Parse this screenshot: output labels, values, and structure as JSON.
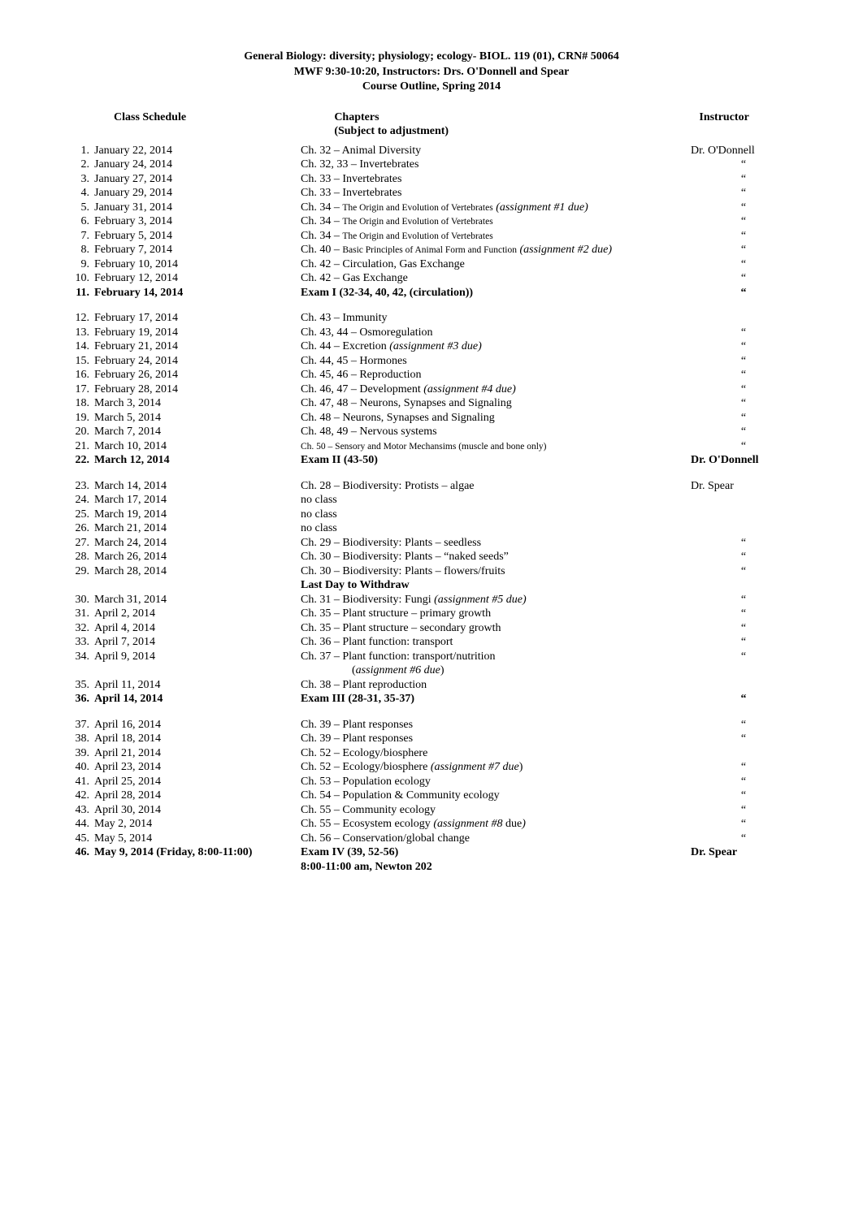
{
  "header": {
    "line1": "General Biology: diversity; physiology; ecology- BIOL. 119 (01), CRN# 50064",
    "line2": "MWF 9:30-10:20, Instructors: Drs. O'Donnell and Spear",
    "line3": "Course Outline, Spring 2014"
  },
  "colheaders": {
    "c1": "Class Schedule",
    "c2a": "Chapters",
    "c2b": "(Subject to adjustment)",
    "c3": "Instructor"
  },
  "blocks": [
    {
      "rows": [
        {
          "num": "1.",
          "date": "January 22, 2014",
          "chap": "Ch. 32 – Animal Diversity",
          "instr": "Dr. O'Donnell"
        },
        {
          "num": "2.",
          "date": "January 24, 2014",
          "chap": "Ch. 32, 33 – Invertebrates",
          "instr": "“"
        },
        {
          "num": "3.",
          "date": "January 27, 2014",
          "chap": "Ch. 33 – Invertebrates",
          "instr": "“"
        },
        {
          "num": "4.",
          "date": "January 29, 2014",
          "chap": "Ch. 33 – Invertebrates",
          "instr": "“"
        },
        {
          "num": "5.",
          "date": "January 31, 2014",
          "chap": "Ch. 34 – <span class=\"small\">The Origin and Evolution of Vertebrates</span> <span class=\"italic\">(assignment #1 due)</span>",
          "instr": "“"
        },
        {
          "num": "6.",
          "date": "February 3, 2014",
          "chap": "Ch. 34 – <span class=\"small\">The Origin and Evolution of Vertebrates</span>",
          "instr": "“"
        },
        {
          "num": "7.",
          "date": "February 5, 2014",
          "chap": "Ch. 34 – <span class=\"small\">The Origin and Evolution of Vertebrates</span>",
          "instr": "“"
        },
        {
          "num": "8.",
          "date": "February 7, 2014",
          "chap": "Ch. 40 – <span class=\"small\">Basic Principles of Animal Form and Function</span> <span class=\"italic\">(assignment #2 due)</span>",
          "instr": "“"
        },
        {
          "num": "9.",
          "date": "February 10, 2014",
          "chap": "Ch. 42 – Circulation, Gas Exchange",
          "instr": "“"
        },
        {
          "num": "10.",
          "date": "February 12, 2014",
          "chap": "Ch. 42 – Gas Exchange",
          "instr": "“"
        },
        {
          "num": "11.",
          "date": "February 14, 2014",
          "chap": "Exam I (32-34, 40, 42, (circulation))",
          "instr": "“",
          "bold": true
        }
      ]
    },
    {
      "rows": [
        {
          "num": "12.",
          "date": "February 17, 2014",
          "chap": "Ch. 43 – Immunity",
          "instr": ""
        },
        {
          "num": "13.",
          "date": "February 19, 2014",
          "chap": "Ch. 43, 44 – Osmoregulation",
          "instr": "“"
        },
        {
          "num": "14.",
          "date": "February 21, 2014",
          "chap": "Ch. 44 – Excretion  <span class=\"italic\">(assignment #3 due)</span>",
          "instr": "“"
        },
        {
          "num": "15.",
          "date": "February 24, 2014",
          "chap": "Ch. 44, 45 – Hormones",
          "instr": "“"
        },
        {
          "num": "16.",
          "date": "February 26, 2014",
          "chap": "Ch. 45, 46 – Reproduction",
          "instr": "“"
        },
        {
          "num": "17.",
          "date": "February 28, 2014",
          "chap": "Ch. 46, 47 – Development <span class=\"italic\">(assignment #4 due)</span>",
          "instr": "“"
        },
        {
          "num": "18.",
          "date": "March 3, 2014",
          "chap": "Ch. 47, 48 – Neurons, Synapses and Signaling",
          "instr": "“"
        },
        {
          "num": "19.",
          "date": "March 5, 2014",
          "chap": "Ch. 48 – Neurons, Synapses and Signaling",
          "instr": "“"
        },
        {
          "num": "20.",
          "date": "March 7, 2014",
          "chap": "Ch. 48, 49 – Nervous systems",
          "instr": "“"
        },
        {
          "num": "21.",
          "date": "March 10, 2014",
          "chap": "<span class=\"small\">Ch. 50 – Sensory and Motor Mechansims (muscle and bone only)</span>",
          "instr": "“"
        },
        {
          "num": "22.",
          "date": "March 12, 2014",
          "chap": "Exam II (43-50)",
          "instr": "Dr. O'Donnell",
          "bold": true
        }
      ]
    },
    {
      "rows": [
        {
          "num": "23.",
          "date": "March 14, 2014",
          "chap": "Ch. 28 – Biodiversity: Protists – algae",
          "instr": "Dr. Spear"
        },
        {
          "num": "24.",
          "date": "March 17, 2014",
          "chap": "no class",
          "instr": ""
        },
        {
          "num": "25.",
          "date": "March 19, 2014",
          "chap": "no class",
          "instr": ""
        },
        {
          "num": "26.",
          "date": "March 21, 2014",
          "chap": "no class",
          "instr": ""
        },
        {
          "num": "27.",
          "date": "March 24, 2014",
          "chap": "Ch. 29 – Biodiversity: Plants – seedless",
          "instr": "“"
        },
        {
          "num": "28.",
          "date": "March 26, 2014",
          "chap": "Ch. 30 – Biodiversity: Plants – “naked seeds”",
          "instr": "“"
        },
        {
          "num": "29.",
          "date": "March 28, 2014",
          "chap": "Ch. 30 – Biodiversity: Plants – flowers/fruits",
          "instr": "“"
        },
        {
          "num": "",
          "date": "",
          "chap": "<span class=\"bold\">Last Day to Withdraw</span>",
          "instr": ""
        },
        {
          "num": "30.",
          "date": "March 31, 2014",
          "chap": "Ch. 31 – Biodiversity: Fungi <span class=\"italic\">(assignment #5 due)</span>",
          "instr": "“"
        },
        {
          "num": "31.",
          "date": "April 2, 2014",
          "chap": "Ch. 35 – Plant structure – primary growth",
          "instr": "“"
        },
        {
          "num": "32.",
          "date": "April 4, 2014",
          "chap": "Ch. 35 – Plant structure – secondary growth",
          "instr": "“"
        },
        {
          "num": "33.",
          "date": "April 7, 2014",
          "chap": "Ch. 36 – Plant function: transport",
          "instr": "“"
        },
        {
          "num": "34.",
          "date": "April 9, 2014",
          "chap": "Ch. 37 – Plant function: transport/nutrition",
          "instr": "“"
        },
        {
          "num": "",
          "date": "",
          "chap": "&nbsp;&nbsp;&nbsp;&nbsp;&nbsp;&nbsp;&nbsp;&nbsp;&nbsp;&nbsp;&nbsp;&nbsp;&nbsp;&nbsp;&nbsp;&nbsp;&nbsp;&nbsp;(<span class=\"italic\">assignment #6 due</span>)",
          "instr": ""
        },
        {
          "num": "35.",
          "date": "April 11, 2014",
          "chap": "Ch. 38 – Plant reproduction",
          "instr": ""
        },
        {
          "num": "36.",
          "date": "April 14, 2014",
          "chap": "Exam III (28-31, 35-37)",
          "instr": "“",
          "bold": true
        }
      ]
    },
    {
      "rows": [
        {
          "num": "37.",
          "date": "April 16, 2014",
          "chap": "Ch. 39 – Plant responses",
          "instr": "“"
        },
        {
          "num": "38.",
          "date": "April 18, 2014",
          "chap": "Ch. 39 – Plant responses",
          "instr": "“"
        },
        {
          "num": "39.",
          "date": "April 21, 2014",
          "chap": "Ch. 52 – Ecology/biosphere",
          "instr": ""
        },
        {
          "num": "40.",
          "date": "April 23, 2014",
          "chap": "Ch. 52 – Ecology/biosphere <span class=\"italic\">(assignment #7 due</span>)",
          "instr": "“"
        },
        {
          "num": "41.",
          "date": "April 25, 2014",
          "chap": "Ch. 53 – Population ecology",
          "instr": "“"
        },
        {
          "num": "42.",
          "date": "April 28, 2014",
          "chap": "Ch. 54 – Population & Community ecology",
          "instr": "“"
        },
        {
          "num": "43.",
          "date": "April 30, 2014",
          "chap": "Ch. 55 – Community ecology",
          "instr": "“"
        },
        {
          "num": "44.",
          "date": "May 2, 2014",
          "chap": "Ch. 55 – Ecosystem ecology <span class=\"italic\">(assignment #8 </span>due<span class=\"italic\">)</span>",
          "instr": "“"
        },
        {
          "num": "45.",
          "date": "May 5, 2014",
          "chap": "Ch. 56 – Conservation/global change",
          "instr": "“"
        },
        {
          "num": "46.",
          "date": "May 9, 2014 (Friday, 8:00-11:00)",
          "chap": "Exam IV (39, 52-56)",
          "instr": "Dr. Spear",
          "bold": true
        },
        {
          "num": "",
          "date": "",
          "chap": "<span class=\"bold\">8:00-11:00 am, Newton 202</span>",
          "instr": ""
        }
      ]
    }
  ]
}
